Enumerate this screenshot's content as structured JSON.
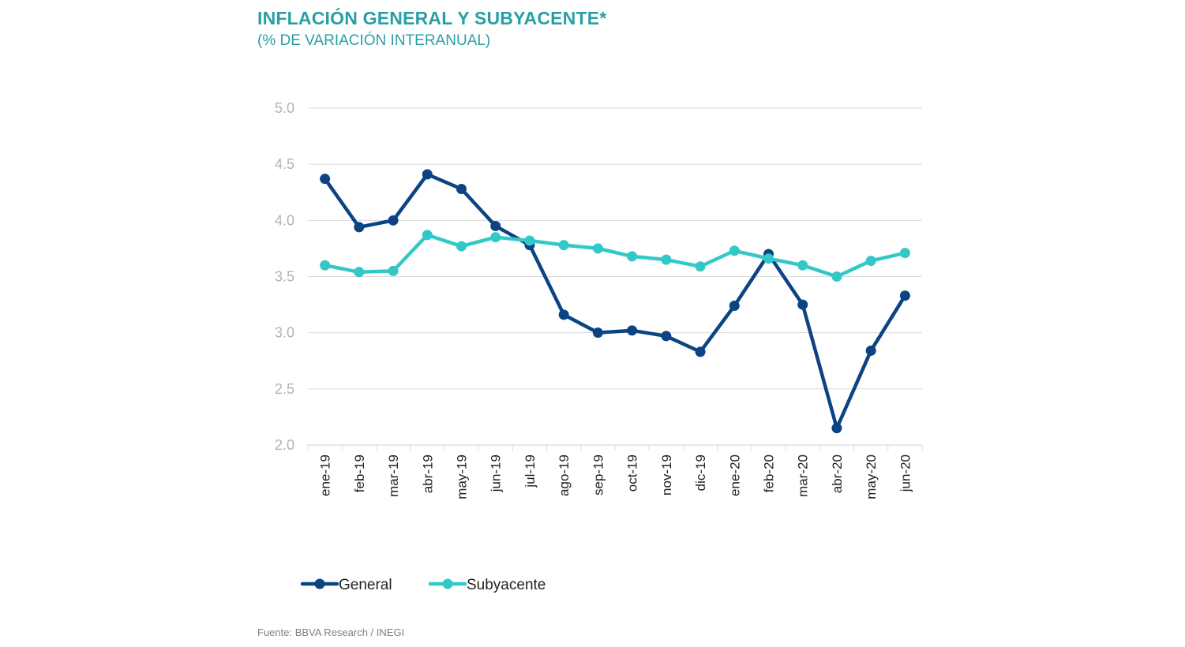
{
  "header": {
    "title": "INFLACIÓN GENERAL Y SUBYACENTE*",
    "subtitle": "(% DE VARIACIÓN INTERANUAL)"
  },
  "footer": {
    "source": "Fuente: BBVA Research / INEGI"
  },
  "colors": {
    "accent": "#2a9fa3",
    "general": "#0b4383",
    "subyacente": "#33c8c8",
    "grid": "#d9d9d9"
  },
  "chart_data": {
    "type": "line",
    "title": "INFLACIÓN GENERAL Y SUBYACENTE*",
    "subtitle": "(% DE VARIACIÓN INTERANUAL)",
    "xlabel": "",
    "ylabel": "",
    "ylim": [
      2.0,
      5.0
    ],
    "yticks": [
      "5.0",
      "4.5",
      "4.0",
      "3.5",
      "3.0",
      "2.5",
      "2.0"
    ],
    "grid": true,
    "legend_position": "bottom-left",
    "categories": [
      "ene-19",
      "feb-19",
      "mar-19",
      "abr-19",
      "may-19",
      "jun-19",
      "jul-19",
      "ago-19",
      "sep-19",
      "oct-19",
      "nov-19",
      "dic-19",
      "ene-20",
      "feb-20",
      "mar-20",
      "abr-20",
      "may-20",
      "jun-20"
    ],
    "series": [
      {
        "name": "General",
        "color": "#0b4383",
        "values": [
          4.37,
          3.94,
          4.0,
          4.41,
          4.28,
          3.95,
          3.78,
          3.16,
          3.0,
          3.02,
          2.97,
          2.83,
          3.24,
          3.7,
          3.25,
          2.15,
          2.84,
          3.33
        ]
      },
      {
        "name": "Subyacente",
        "color": "#33c8c8",
        "values": [
          3.6,
          3.54,
          3.55,
          3.87,
          3.77,
          3.85,
          3.82,
          3.78,
          3.75,
          3.68,
          3.65,
          3.59,
          3.73,
          3.66,
          3.6,
          3.5,
          3.64,
          3.71
        ]
      }
    ]
  }
}
